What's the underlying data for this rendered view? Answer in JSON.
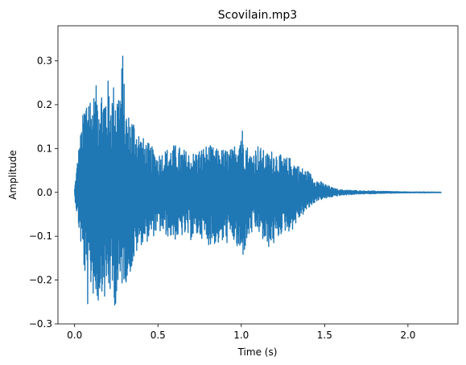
{
  "chart_data": {
    "type": "line",
    "title": "Scovilain.mp3",
    "xlabel": "Time (s)",
    "ylabel": "Amplitude",
    "xlim": [
      -0.1,
      2.3
    ],
    "ylim": [
      -0.3,
      0.38
    ],
    "xticks": [
      0.0,
      0.5,
      1.0,
      1.5,
      2.0
    ],
    "xtick_labels": [
      "0.0",
      "0.5",
      "1.0",
      "1.5",
      "2.0"
    ],
    "yticks": [
      -0.3,
      -0.2,
      -0.1,
      0.0,
      0.1,
      0.2,
      0.3
    ],
    "ytick_labels": [
      "−0.3",
      "−0.2",
      "−0.1",
      "0.0",
      "0.1",
      "0.2",
      "0.3"
    ],
    "grid": false,
    "legend": "none",
    "line_color": "#1f77b4",
    "series": [
      {
        "x": [
          0.0,
          0.02,
          0.04,
          0.06,
          0.08,
          0.1,
          0.12,
          0.14,
          0.16,
          0.18,
          0.2,
          0.22,
          0.24,
          0.26,
          0.28,
          0.29,
          0.3,
          0.32,
          0.34,
          0.36,
          0.38,
          0.4,
          0.45,
          0.5,
          0.55,
          0.6,
          0.65,
          0.7,
          0.75,
          0.8,
          0.85,
          0.9,
          0.95,
          1.0,
          1.05,
          1.1,
          1.15,
          1.2,
          1.25,
          1.3,
          1.35,
          1.4,
          1.45,
          1.5,
          1.55,
          1.6,
          1.7,
          1.8,
          1.9,
          2.0,
          2.1,
          2.2
        ],
        "max": [
          0.01,
          0.09,
          0.15,
          0.21,
          0.26,
          0.22,
          0.23,
          0.26,
          0.25,
          0.24,
          0.26,
          0.23,
          0.26,
          0.24,
          0.27,
          0.345,
          0.21,
          0.18,
          0.18,
          0.17,
          0.15,
          0.13,
          0.11,
          0.09,
          0.1,
          0.11,
          0.1,
          0.09,
          0.1,
          0.11,
          0.1,
          0.1,
          0.1,
          0.16,
          0.09,
          0.11,
          0.09,
          0.1,
          0.08,
          0.08,
          0.06,
          0.05,
          0.03,
          0.02,
          0.01,
          0.006,
          0.004,
          0.003,
          0.002,
          0.001,
          0.001,
          0.0005
        ],
        "min": [
          -0.01,
          -0.07,
          -0.13,
          -0.19,
          -0.27,
          -0.22,
          -0.25,
          -0.26,
          -0.22,
          -0.25,
          -0.23,
          -0.24,
          -0.26,
          -0.25,
          -0.23,
          -0.2,
          -0.21,
          -0.2,
          -0.18,
          -0.16,
          -0.13,
          -0.12,
          -0.11,
          -0.09,
          -0.1,
          -0.11,
          -0.1,
          -0.11,
          -0.1,
          -0.12,
          -0.12,
          -0.12,
          -0.11,
          -0.16,
          -0.1,
          -0.09,
          -0.13,
          -0.12,
          -0.09,
          -0.09,
          -0.06,
          -0.04,
          -0.02,
          -0.015,
          -0.01,
          -0.007,
          -0.004,
          -0.003,
          -0.002,
          -0.001,
          -0.001,
          -0.0005
        ]
      }
    ]
  }
}
